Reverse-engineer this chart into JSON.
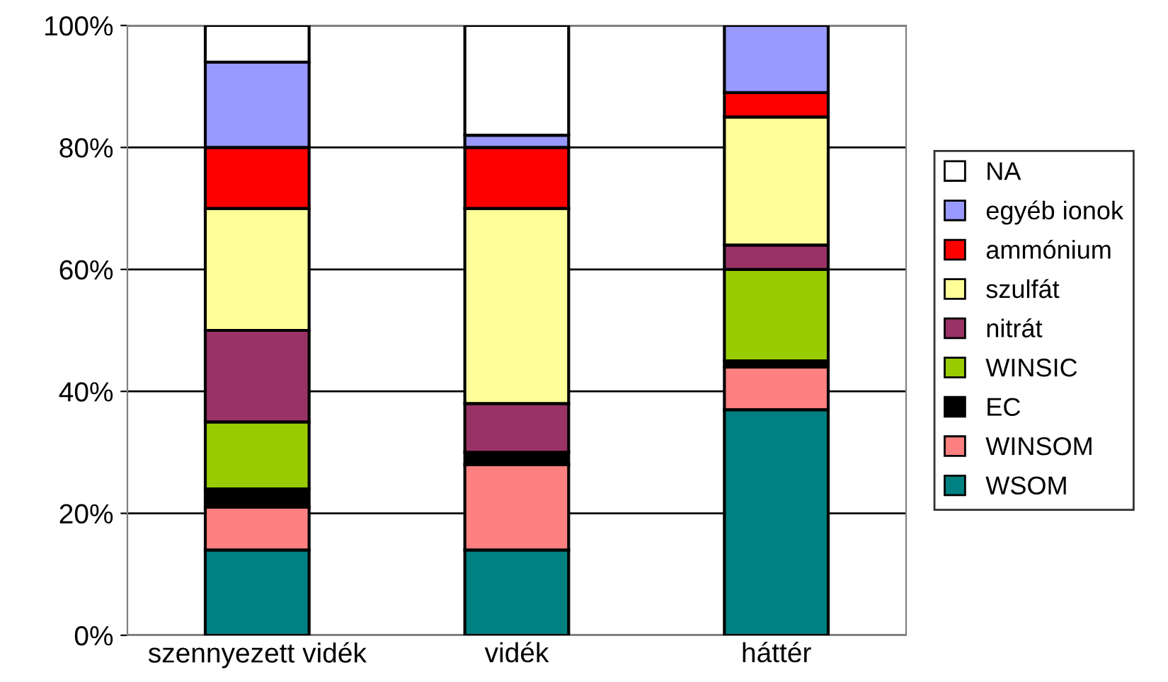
{
  "chart_data": {
    "type": "bar",
    "stacked": true,
    "categories": [
      "szennyezett vidék",
      "vidék",
      "háttér"
    ],
    "series": [
      {
        "name": "WSOM",
        "color": "#008080",
        "values": [
          14,
          14,
          37
        ]
      },
      {
        "name": "WINSOM",
        "color": "#ff8080",
        "values": [
          7,
          14,
          7
        ]
      },
      {
        "name": "EC",
        "color": "#000000",
        "values": [
          3,
          2,
          1
        ]
      },
      {
        "name": "WINSIC",
        "color": "#99cc00",
        "values": [
          11,
          0,
          15
        ]
      },
      {
        "name": "nitrát",
        "color": "#993366",
        "values": [
          15,
          8,
          4
        ]
      },
      {
        "name": "szulfát",
        "color": "#ffff99",
        "values": [
          20,
          32,
          21
        ]
      },
      {
        "name": "ammónium",
        "color": "#ff0000",
        "values": [
          10,
          10,
          4
        ]
      },
      {
        "name": "egyéb ionok",
        "color": "#9999ff",
        "values": [
          14,
          2,
          11
        ]
      },
      {
        "name": "NA",
        "color": "#ffffff",
        "values": [
          6,
          18,
          0
        ]
      }
    ],
    "ylim": [
      0,
      100
    ],
    "yticks": [
      {
        "value": 0,
        "label": "0%"
      },
      {
        "value": 20,
        "label": "20%"
      },
      {
        "value": 40,
        "label": "40%"
      },
      {
        "value": 60,
        "label": "60%"
      },
      {
        "value": 80,
        "label": "80%"
      },
      {
        "value": 100,
        "label": "100%"
      }
    ],
    "grid": "y",
    "legend": "right"
  }
}
